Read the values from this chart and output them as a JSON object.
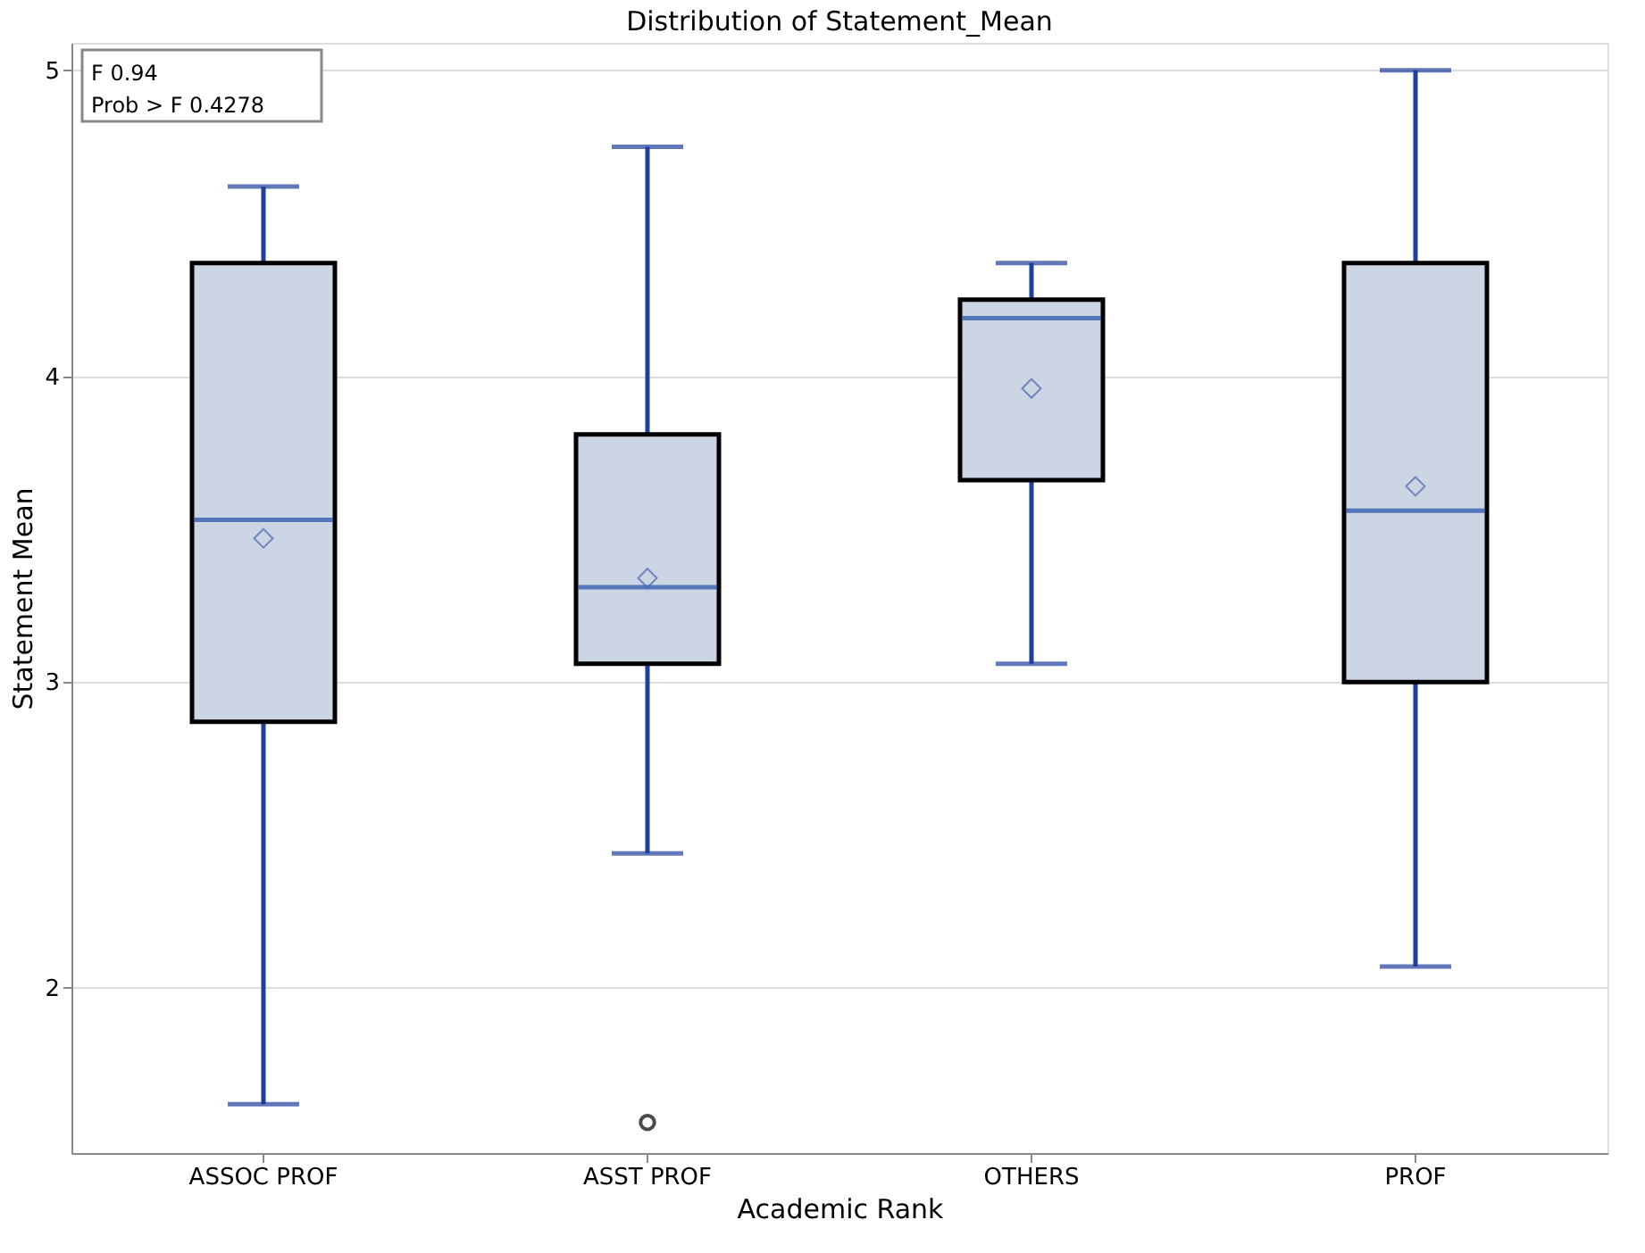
{
  "chart_data": {
    "type": "box",
    "title": "Distribution of Statement_Mean",
    "xlabel": "Academic Rank",
    "ylabel": "Statement Mean",
    "categories": [
      "ASSOC PROF",
      "ASST PROF",
      "OTHERS",
      "PROF"
    ],
    "series": [
      {
        "color": "#cbd5e4",
        "boxes": [
          {
            "low": 1.62,
            "q1": 2.87,
            "median": 3.53,
            "q3": 4.37,
            "high": 4.62,
            "mean": 3.47
          },
          {
            "low": 2.44,
            "q1": 3.06,
            "median": 3.31,
            "q3": 3.81,
            "high": 4.75,
            "mean": 3.34,
            "outliers": [
              1.56
            ]
          },
          {
            "low": 3.06,
            "q1": 3.66,
            "median": 4.19,
            "q3": 4.25,
            "high": 4.37,
            "mean": 3.96
          },
          {
            "low": 2.07,
            "q1": 3.0,
            "median": 3.56,
            "q3": 4.37,
            "high": 5.0,
            "mean": 3.64
          }
        ]
      }
    ],
    "ylim": [
      1.46,
      5.09
    ],
    "yticks": [
      2,
      3,
      4,
      5
    ],
    "grid": "y",
    "annotations": [
      "F 0.94",
      "Prob > F 0.4278"
    ]
  }
}
